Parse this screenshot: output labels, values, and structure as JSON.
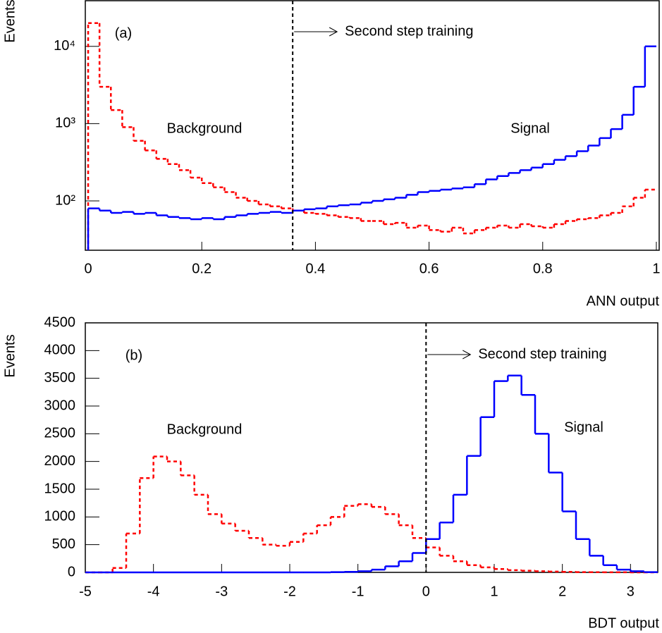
{
  "chart_data": [
    {
      "type": "histogram",
      "panel_label": "(a)",
      "annotation": "Second step training",
      "xlabel": "ANN output",
      "ylabel": "Events",
      "log_y": true,
      "xlim": [
        -0.005,
        1.005
      ],
      "ylim": [
        23,
        39000
      ],
      "xticks": [
        0,
        0.2,
        0.4,
        0.6,
        0.8,
        1
      ],
      "yticks": [
        {
          "value": 100,
          "label": "10²"
        },
        {
          "value": 1000,
          "label": "10³"
        },
        {
          "value": 10000,
          "label": "10⁴"
        }
      ],
      "cut_line": 0.36,
      "bins": [
        0,
        0.02,
        0.04,
        0.06,
        0.08,
        0.1,
        0.12,
        0.14,
        0.16,
        0.18,
        0.2,
        0.22,
        0.24,
        0.26,
        0.28,
        0.3,
        0.32,
        0.34,
        0.36,
        0.38,
        0.4,
        0.42,
        0.44,
        0.46,
        0.48,
        0.5,
        0.52,
        0.54,
        0.56,
        0.58,
        0.6,
        0.62,
        0.64,
        0.66,
        0.68,
        0.7,
        0.72,
        0.74,
        0.76,
        0.78,
        0.8,
        0.82,
        0.84,
        0.86,
        0.88,
        0.9,
        0.92,
        0.94,
        0.96,
        0.98,
        1
      ],
      "series": [
        {
          "name": "Background",
          "color": "#ff0000",
          "linestyle": "dashed",
          "values": [
            20000,
            3000,
            1500,
            900,
            600,
            450,
            350,
            300,
            250,
            200,
            170,
            150,
            130,
            110,
            100,
            90,
            85,
            80,
            75,
            70,
            68,
            65,
            62,
            60,
            55,
            55,
            50,
            52,
            45,
            48,
            42,
            40,
            45,
            38,
            42,
            45,
            48,
            45,
            50,
            47,
            45,
            50,
            55,
            58,
            60,
            65,
            70,
            85,
            110,
            140
          ]
        },
        {
          "name": "Signal",
          "color": "#0000ff",
          "linestyle": "solid",
          "values": [
            80,
            75,
            70,
            72,
            68,
            70,
            65,
            62,
            60,
            58,
            60,
            58,
            62,
            65,
            68,
            70,
            72,
            70,
            75,
            78,
            80,
            85,
            88,
            90,
            95,
            100,
            105,
            110,
            120,
            130,
            135,
            140,
            145,
            150,
            165,
            190,
            210,
            230,
            250,
            270,
            300,
            340,
            380,
            440,
            520,
            650,
            850,
            1300,
            3000,
            10000
          ]
        }
      ]
    },
    {
      "type": "histogram",
      "panel_label": "(b)",
      "annotation": "Second step training",
      "xlabel": "BDT output",
      "ylabel": "Events",
      "log_y": false,
      "xlim": [
        -5,
        3.4
      ],
      "ylim": [
        0,
        4500
      ],
      "xticks": [
        -5,
        -4,
        -3,
        -2,
        -1,
        0,
        1,
        2,
        3
      ],
      "yticks": [
        0,
        500,
        1000,
        1500,
        2000,
        2500,
        3000,
        3500,
        4000,
        4500
      ],
      "cut_line": 0,
      "bins": [
        -5,
        -4.8,
        -4.6,
        -4.4,
        -4.2,
        -4,
        -3.8,
        -3.6,
        -3.4,
        -3.2,
        -3,
        -2.8,
        -2.6,
        -2.4,
        -2.2,
        -2,
        -1.8,
        -1.6,
        -1.4,
        -1.2,
        -1,
        -0.8,
        -0.6,
        -0.4,
        -0.2,
        0,
        0.2,
        0.4,
        0.6,
        0.8,
        1,
        1.2,
        1.4,
        1.6,
        1.8,
        2,
        2.2,
        2.4,
        2.6,
        2.8,
        3,
        3.2,
        3.4
      ],
      "series": [
        {
          "name": "Background",
          "color": "#ff0000",
          "linestyle": "dashed",
          "values": [
            0,
            0,
            80,
            700,
            1700,
            2090,
            2000,
            1750,
            1400,
            1050,
            880,
            750,
            620,
            500,
            480,
            550,
            700,
            850,
            1000,
            1200,
            1230,
            1180,
            1050,
            850,
            620,
            450,
            300,
            200,
            130,
            90,
            60,
            40,
            30,
            20,
            15,
            10,
            5,
            3,
            2,
            1,
            0,
            0
          ]
        },
        {
          "name": "Signal",
          "color": "#0000ff",
          "linestyle": "solid",
          "values": [
            0,
            0,
            0,
            0,
            0,
            0,
            0,
            0,
            0,
            0,
            0,
            0,
            0,
            0,
            0,
            0,
            0,
            0,
            5,
            10,
            20,
            50,
            110,
            200,
            350,
            600,
            900,
            1400,
            2100,
            2800,
            3450,
            3550,
            3200,
            2500,
            1800,
            1100,
            600,
            300,
            130,
            50,
            20,
            5
          ]
        }
      ]
    }
  ]
}
